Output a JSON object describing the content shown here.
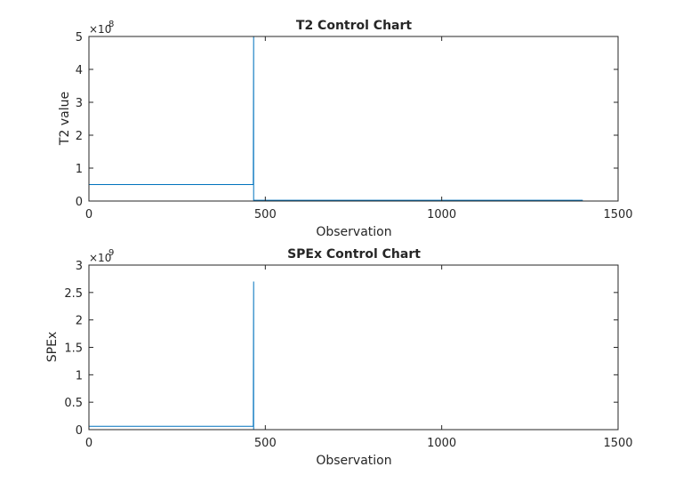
{
  "chart_data": [
    {
      "type": "line",
      "title": "T2 Control Chart",
      "xlabel": "Observation",
      "ylabel": "T2 value",
      "xlim": [
        0,
        1500
      ],
      "ylim": [
        0,
        500000000
      ],
      "y_exponent_label": "×10",
      "y_exponent": "8",
      "x_ticks": [
        0,
        500,
        1000,
        1500
      ],
      "y_ticks": [
        0,
        1,
        2,
        3,
        4,
        5
      ],
      "grid": false,
      "colors": {
        "series": "#0072BD",
        "limit": "#D95319",
        "axes": "#262626"
      },
      "series": [
        {
          "x": [
            0,
            466,
            467,
            467,
            468,
            1400
          ],
          "y": [
            50000000,
            50000000,
            500000000,
            2500000,
            2500000,
            2500000
          ]
        },
        {
          "x": [
            0,
            1400
          ],
          "y": [
            0,
            0
          ]
        }
      ]
    },
    {
      "type": "line",
      "title": "SPEx Control Chart",
      "xlabel": "Observation",
      "ylabel": "SPEx",
      "xlim": [
        0,
        1500
      ],
      "ylim": [
        0,
        3000000000
      ],
      "y_exponent_label": "×10",
      "y_exponent": "9",
      "x_ticks": [
        0,
        500,
        1000,
        1500
      ],
      "y_ticks": [
        0,
        0.5,
        1,
        1.5,
        2,
        2.5,
        3
      ],
      "grid": false,
      "colors": {
        "series": "#0072BD",
        "limit": "#D95319",
        "axes": "#262626"
      },
      "series": [
        {
          "x": [
            0,
            466,
            467,
            467,
            468,
            1400
          ],
          "y": [
            60000000,
            60000000,
            2700000000,
            0,
            0,
            0
          ]
        },
        {
          "x": [
            0,
            1400
          ],
          "y": [
            0,
            0
          ]
        }
      ]
    }
  ]
}
